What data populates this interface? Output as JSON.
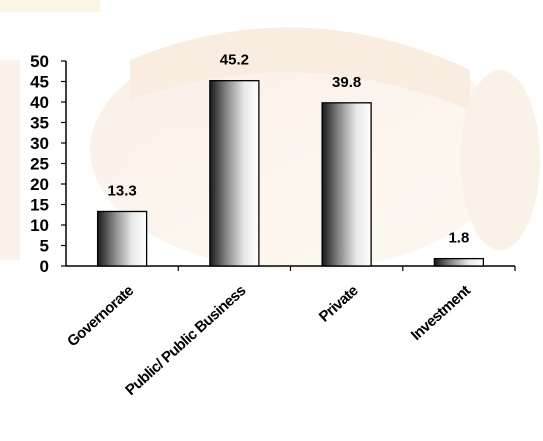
{
  "chart_data": {
    "type": "bar",
    "title": "",
    "xlabel": "",
    "ylabel": "",
    "categories": [
      "Governorate",
      "Public/ Public Business",
      "Private",
      "Investment"
    ],
    "values": [
      13.3,
      45.2,
      39.8,
      1.8
    ],
    "data_labels": [
      "13.3",
      "45.2",
      "39.8",
      "1.8"
    ],
    "ylim": [
      0,
      50
    ],
    "yticks": [
      "0",
      "5",
      "10",
      "15",
      "20",
      "25",
      "30",
      "35",
      "40",
      "45",
      "50"
    ],
    "grid": false,
    "legend": "none"
  }
}
